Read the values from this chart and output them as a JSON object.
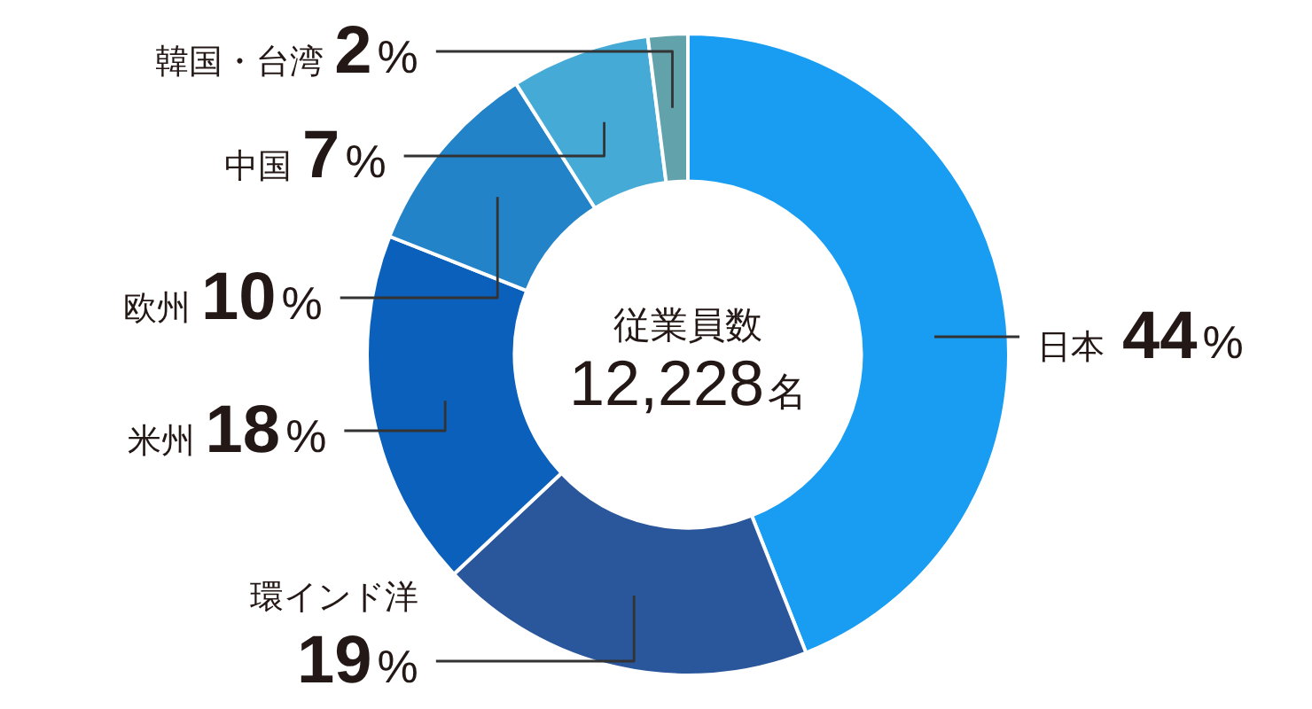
{
  "chart_data": {
    "type": "donut",
    "categories": [
      "日本",
      "環インド洋",
      "米州",
      "欧州",
      "中国",
      "韓国・台湾"
    ],
    "values": [
      44,
      19,
      18,
      10,
      7,
      2
    ],
    "colors": [
      "#189df2",
      "#2a569c",
      "#0b60bb",
      "#2383c8",
      "#45abd6",
      "#62a2ab"
    ],
    "value_labels": [
      "44%",
      "19%",
      "18%",
      "10%",
      "7%",
      "2%"
    ],
    "annotations": [
      "従業員数",
      "12,228名"
    ]
  }
}
